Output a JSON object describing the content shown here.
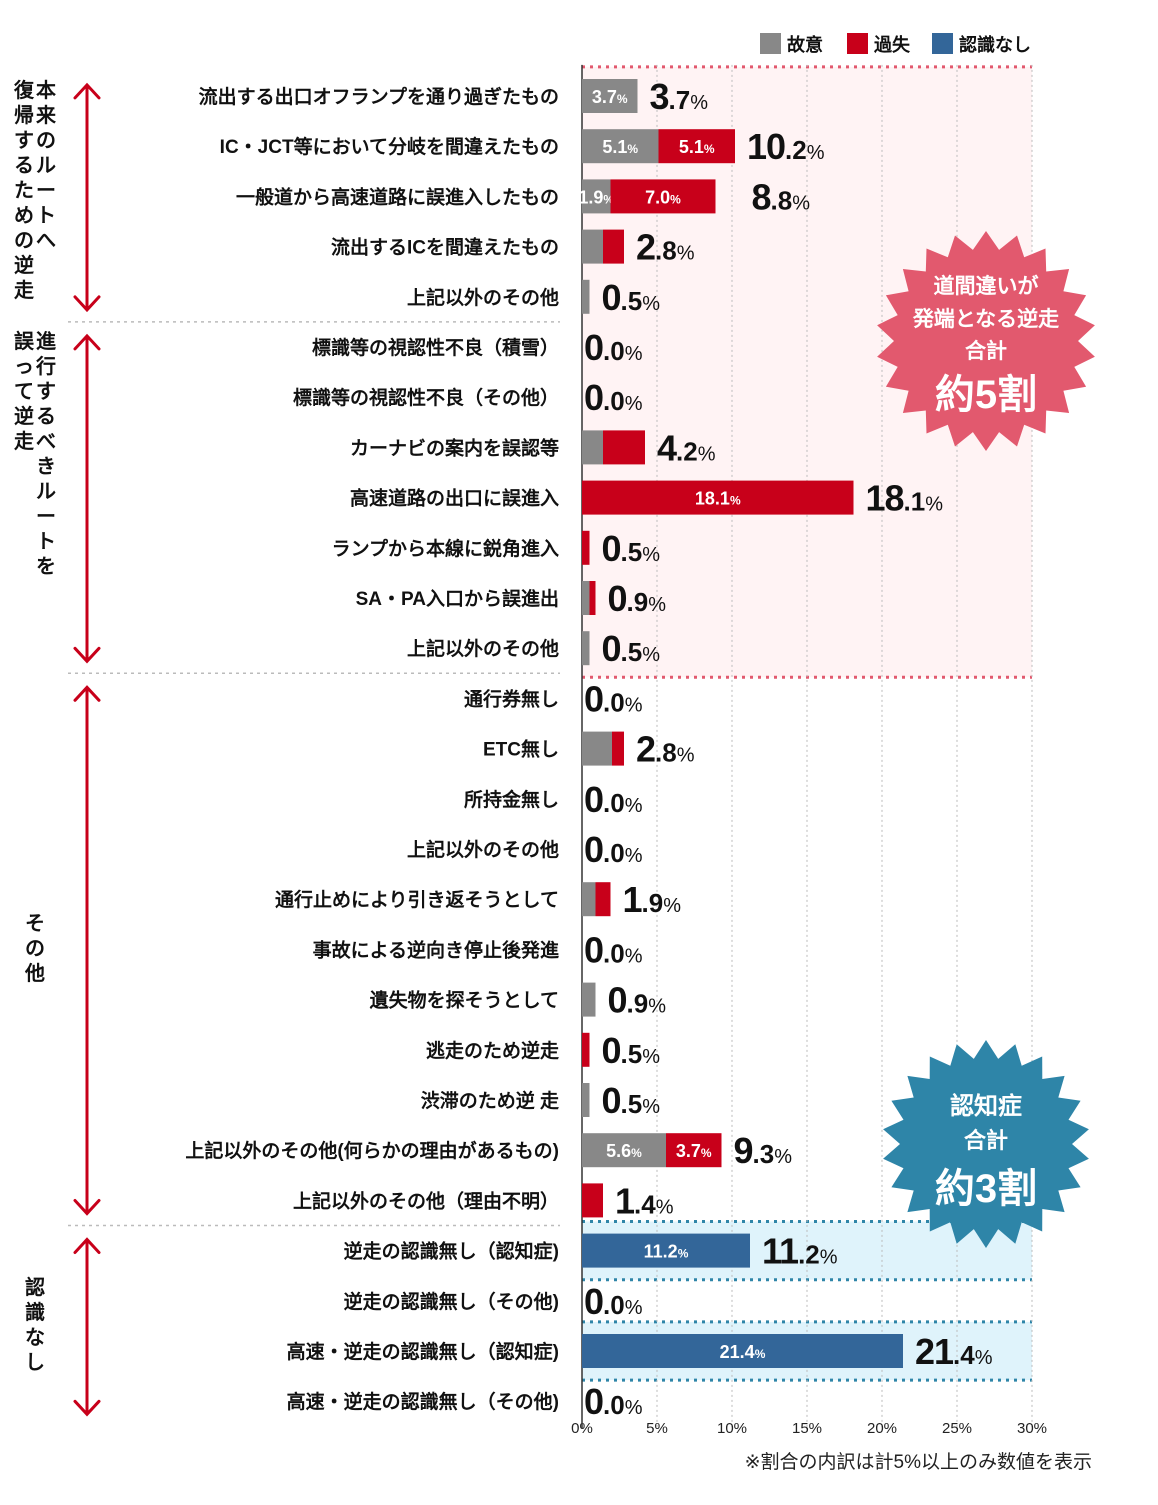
{
  "chart_data": {
    "type": "bar",
    "stacked": true,
    "orientation": "horizontal",
    "unit": "%",
    "xlim": [
      0,
      30
    ],
    "xticks": [
      "0%",
      "5%",
      "10%",
      "15%",
      "20%",
      "25%",
      "30%"
    ],
    "grid": true,
    "legend_position": "top-right",
    "series": [
      {
        "name": "故意",
        "color": "#888888"
      },
      {
        "name": "過失",
        "color": "#c8001a"
      },
      {
        "name": "認識なし",
        "color": "#336699"
      }
    ],
    "groups": [
      {
        "label": "本来のルートへ復帰するための逆走",
        "label_columns": [
          "本来のルートへ",
          "復帰するための逆走"
        ],
        "start": 0,
        "end": 4
      },
      {
        "label": "進行するべきルートを誤って逆走",
        "label_columns": [
          "進行するべきルートを",
          "誤って逆走"
        ],
        "start": 5,
        "end": 11
      },
      {
        "label": "その他",
        "label_columns": [
          "その他"
        ],
        "start": 12,
        "end": 22
      },
      {
        "label": "認識なし",
        "label_columns": [
          "認識なし"
        ],
        "start": 23,
        "end": 26
      }
    ],
    "categories": [
      {
        "label": "流出する出口オフランプを通り過ぎたもの",
        "total": "3.7",
        "values": [
          3.7,
          0,
          0
        ],
        "segment_labels": [
          "3.7",
          null,
          null
        ]
      },
      {
        "label": "IC・JCT等において分岐を間違えたもの",
        "total": "10.2",
        "values": [
          5.1,
          5.1,
          0
        ],
        "segment_labels": [
          "5.1",
          "5.1",
          null
        ]
      },
      {
        "label": "一般道から高速道路に誤進入したもの",
        "total": "8.8",
        "values": [
          1.9,
          7.0,
          0
        ],
        "segment_labels": [
          "1.9",
          "7.0",
          null
        ]
      },
      {
        "label": "流出するICを間違えたもの",
        "total": "2.8",
        "values": [
          1.4,
          1.4,
          0
        ],
        "segment_labels": [
          null,
          null,
          null
        ]
      },
      {
        "label": "上記以外のその他",
        "total": "0.5",
        "values": [
          0.5,
          0,
          0
        ],
        "segment_labels": [
          null,
          null,
          null
        ]
      },
      {
        "label": "標識等の視認性不良（積雪）",
        "total": "0.0",
        "values": [
          0,
          0,
          0
        ],
        "segment_labels": [
          null,
          null,
          null
        ]
      },
      {
        "label": "標識等の視認性不良（その他）",
        "total": "0.0",
        "values": [
          0,
          0,
          0
        ],
        "segment_labels": [
          null,
          null,
          null
        ]
      },
      {
        "label": "カーナビの案内を誤認等",
        "total": "4.2",
        "values": [
          1.4,
          2.8,
          0
        ],
        "segment_labels": [
          null,
          null,
          null
        ]
      },
      {
        "label": "高速道路の出口に誤進入",
        "total": "18.1",
        "values": [
          0,
          18.1,
          0
        ],
        "segment_labels": [
          null,
          "18.1",
          null
        ]
      },
      {
        "label": "ランプから本線に鋭角進入",
        "total": "0.5",
        "values": [
          0,
          0.5,
          0
        ],
        "segment_labels": [
          null,
          null,
          null
        ]
      },
      {
        "label": "SA・PA入口から誤進出",
        "total": "0.9",
        "values": [
          0.5,
          0.4,
          0
        ],
        "segment_labels": [
          null,
          null,
          null
        ]
      },
      {
        "label": "上記以外のその他",
        "total": "0.5",
        "values": [
          0.5,
          0,
          0
        ],
        "segment_labels": [
          null,
          null,
          null
        ]
      },
      {
        "label": "通行券無し",
        "total": "0.0",
        "values": [
          0,
          0,
          0
        ],
        "segment_labels": [
          null,
          null,
          null
        ]
      },
      {
        "label": "ETC無し",
        "total": "2.8",
        "values": [
          2.0,
          0.8,
          0
        ],
        "segment_labels": [
          null,
          null,
          null
        ]
      },
      {
        "label": "所持金無し",
        "total": "0.0",
        "values": [
          0,
          0,
          0
        ],
        "segment_labels": [
          null,
          null,
          null
        ]
      },
      {
        "label": "上記以外のその他",
        "total": "0.0",
        "values": [
          0,
          0,
          0
        ],
        "segment_labels": [
          null,
          null,
          null
        ]
      },
      {
        "label": "通行止めにより引き返そうとして",
        "total": "1.9",
        "values": [
          0.9,
          1.0,
          0
        ],
        "segment_labels": [
          null,
          null,
          null
        ]
      },
      {
        "label": "事故による逆向き停止後発進",
        "total": "0.0",
        "values": [
          0,
          0,
          0
        ],
        "segment_labels": [
          null,
          null,
          null
        ]
      },
      {
        "label": "遺失物を探そうとして",
        "total": "0.9",
        "values": [
          0.9,
          0,
          0
        ],
        "segment_labels": [
          null,
          null,
          null
        ]
      },
      {
        "label": "逃走のため逆走",
        "total": "0.5",
        "values": [
          0,
          0.5,
          0
        ],
        "segment_labels": [
          null,
          null,
          null
        ]
      },
      {
        "label": "渋滞のため逆 走",
        "total": "0.5",
        "values": [
          0.5,
          0,
          0
        ],
        "segment_labels": [
          null,
          null,
          null
        ]
      },
      {
        "label": "上記以外のその他(何らかの理由があるもの)",
        "total": "9.3",
        "values": [
          5.6,
          3.7,
          0
        ],
        "segment_labels": [
          "5.6",
          "3.7",
          null
        ]
      },
      {
        "label": "上記以外のその他（理由不明）",
        "total": "1.4",
        "values": [
          0,
          1.4,
          0
        ],
        "segment_labels": [
          null,
          null,
          null
        ]
      },
      {
        "label": "逆走の認識無し（認知症)",
        "total": "11.2",
        "values": [
          0,
          0,
          11.2
        ],
        "segment_labels": [
          null,
          null,
          "11.2"
        ]
      },
      {
        "label": "逆走の認識無し（その他)",
        "total": "0.0",
        "values": [
          0,
          0,
          0
        ],
        "segment_labels": [
          null,
          null,
          null
        ]
      },
      {
        "label": "高速・逆走の認識無し（認知症)",
        "total": "21.4",
        "values": [
          0,
          0,
          21.4
        ],
        "segment_labels": [
          null,
          null,
          "21.4"
        ]
      },
      {
        "label": "高速・逆走の認識無し（その他)",
        "total": "0.0",
        "values": [
          0,
          0,
          0
        ],
        "segment_labels": [
          null,
          null,
          null
        ]
      }
    ],
    "highlights": [
      {
        "style": "pink-dotted",
        "start": 0,
        "end": 11
      },
      {
        "style": "blue-dotted",
        "start": 23,
        "end": 23
      },
      {
        "style": "blue-dotted",
        "start": 25,
        "end": 25
      }
    ],
    "annotations": [
      {
        "shape": "starburst",
        "color": "#e2596e",
        "lines": [
          "道間違いが",
          "発端となる逆走",
          "合計",
          "約5割"
        ]
      },
      {
        "shape": "starburst",
        "color": "#2e85a8",
        "lines": [
          "認知症",
          "合計",
          "約3割"
        ]
      }
    ],
    "footnote": "※割合の内訳は計5%以上のみ数値を表示"
  }
}
